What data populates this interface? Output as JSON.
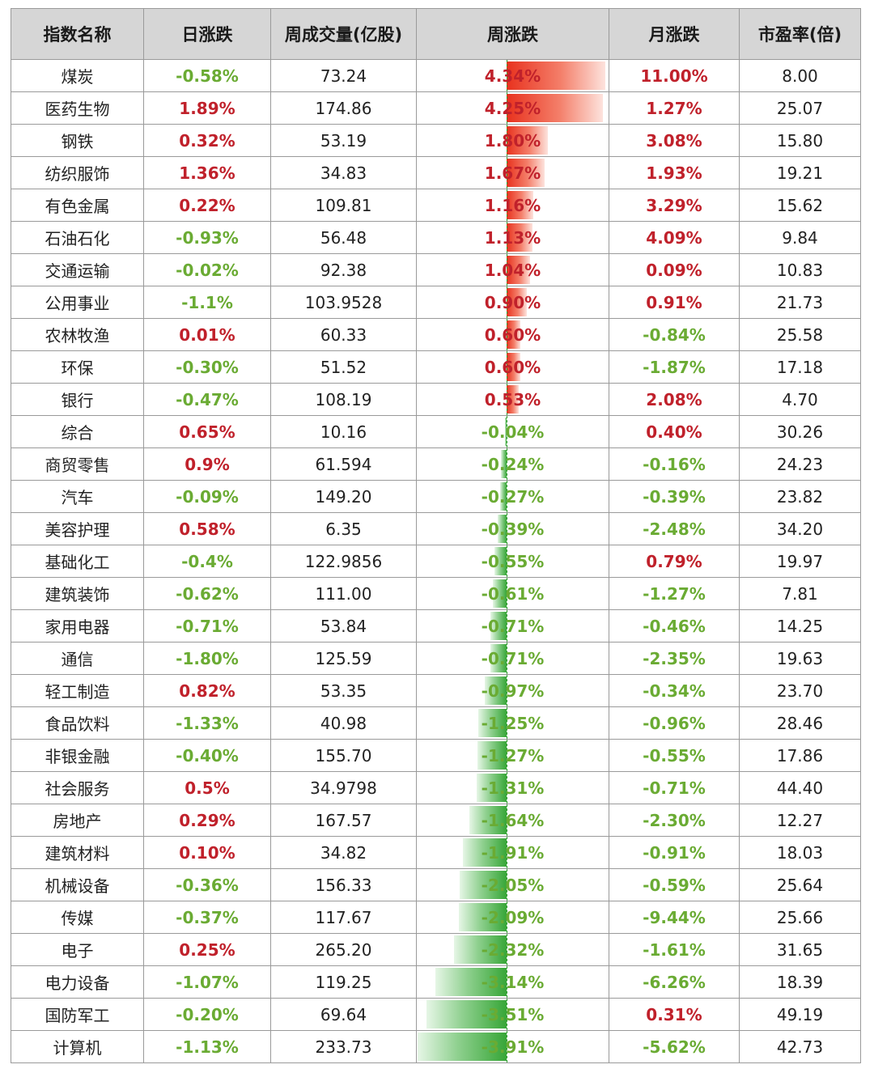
{
  "headers": {
    "name": "指数名称",
    "day": "日涨跌",
    "volume": "周成交量(亿股)",
    "week": "周涨跌",
    "month": "月涨跌",
    "pe": "市盈率(倍)"
  },
  "colors": {
    "up": "#c0212b",
    "down": "#6aab33",
    "bar_up": "#e8321e",
    "bar_down": "#37a637",
    "header_bg": "#d6d6d6"
  },
  "rows": [
    {
      "name": "煤炭",
      "day": "-0.58%",
      "volume": "73.24",
      "week": "4.34%",
      "week_value": 4.34,
      "month": "11.00%",
      "pe": "8.00"
    },
    {
      "name": "医药生物",
      "day": "1.89%",
      "volume": "174.86",
      "week": "4.25%",
      "week_value": 4.25,
      "month": "1.27%",
      "pe": "25.07"
    },
    {
      "name": "钢铁",
      "day": "0.32%",
      "volume": "53.19",
      "week": "1.80%",
      "week_value": 1.8,
      "month": "3.08%",
      "pe": "15.80"
    },
    {
      "name": "纺织服饰",
      "day": "1.36%",
      "volume": "34.83",
      "week": "1.67%",
      "week_value": 1.67,
      "month": "1.93%",
      "pe": "19.21"
    },
    {
      "name": "有色金属",
      "day": "0.22%",
      "volume": "109.81",
      "week": "1.16%",
      "week_value": 1.16,
      "month": "3.29%",
      "pe": "15.62"
    },
    {
      "name": "石油石化",
      "day": "-0.93%",
      "volume": "56.48",
      "week": "1.13%",
      "week_value": 1.13,
      "month": "4.09%",
      "pe": "9.84"
    },
    {
      "name": "交通运输",
      "day": "-0.02%",
      "volume": "92.38",
      "week": "1.04%",
      "week_value": 1.04,
      "month": "0.09%",
      "pe": "10.83"
    },
    {
      "name": "公用事业",
      "day": "-1.1%",
      "volume": "103.9528",
      "week": "0.90%",
      "week_value": 0.9,
      "month": "0.91%",
      "pe": "21.73"
    },
    {
      "name": "农林牧渔",
      "day": "0.01%",
      "volume": "60.33",
      "week": "0.60%",
      "week_value": 0.6,
      "month": "-0.84%",
      "pe": "25.58"
    },
    {
      "name": "环保",
      "day": "-0.30%",
      "volume": "51.52",
      "week": "0.60%",
      "week_value": 0.6,
      "month": "-1.87%",
      "pe": "17.18"
    },
    {
      "name": "银行",
      "day": "-0.47%",
      "volume": "108.19",
      "week": "0.53%",
      "week_value": 0.53,
      "month": "2.08%",
      "pe": "4.70"
    },
    {
      "name": "综合",
      "day": "0.65%",
      "volume": "10.16",
      "week": "-0.04%",
      "week_value": -0.04,
      "month": "0.40%",
      "pe": "30.26"
    },
    {
      "name": "商贸零售",
      "day": "0.9%",
      "volume": "61.594",
      "week": "-0.24%",
      "week_value": -0.24,
      "month": "-0.16%",
      "pe": "24.23"
    },
    {
      "name": "汽车",
      "day": "-0.09%",
      "volume": "149.20",
      "week": "-0.27%",
      "week_value": -0.27,
      "month": "-0.39%",
      "pe": "23.82"
    },
    {
      "name": "美容护理",
      "day": "0.58%",
      "volume": "6.35",
      "week": "-0.39%",
      "week_value": -0.39,
      "month": "-2.48%",
      "pe": "34.20"
    },
    {
      "name": "基础化工",
      "day": "-0.4%",
      "volume": "122.9856",
      "week": "-0.55%",
      "week_value": -0.55,
      "month": "0.79%",
      "pe": "19.97"
    },
    {
      "name": "建筑装饰",
      "day": "-0.62%",
      "volume": "111.00",
      "week": "-0.61%",
      "week_value": -0.61,
      "month": "-1.27%",
      "pe": "7.81"
    },
    {
      "name": "家用电器",
      "day": "-0.71%",
      "volume": "53.84",
      "week": "-0.71%",
      "week_value": -0.71,
      "month": "-0.46%",
      "pe": "14.25"
    },
    {
      "name": "通信",
      "day": "-1.80%",
      "volume": "125.59",
      "week": "-0.71%",
      "week_value": -0.71,
      "month": "-2.35%",
      "pe": "19.63"
    },
    {
      "name": "轻工制造",
      "day": "0.82%",
      "volume": "53.35",
      "week": "-0.97%",
      "week_value": -0.97,
      "month": "-0.34%",
      "pe": "23.70"
    },
    {
      "name": "食品饮料",
      "day": "-1.33%",
      "volume": "40.98",
      "week": "-1.25%",
      "week_value": -1.25,
      "month": "-0.96%",
      "pe": "28.46"
    },
    {
      "name": "非银金融",
      "day": "-0.40%",
      "volume": "155.70",
      "week": "-1.27%",
      "week_value": -1.27,
      "month": "-0.55%",
      "pe": "17.86"
    },
    {
      "name": "社会服务",
      "day": "0.5%",
      "volume": "34.9798",
      "week": "-1.31%",
      "week_value": -1.31,
      "month": "-0.71%",
      "pe": "44.40"
    },
    {
      "name": "房地产",
      "day": "0.29%",
      "volume": "167.57",
      "week": "-1.64%",
      "week_value": -1.64,
      "month": "-2.30%",
      "pe": "12.27"
    },
    {
      "name": "建筑材料",
      "day": "0.10%",
      "volume": "34.82",
      "week": "-1.91%",
      "week_value": -1.91,
      "month": "-0.91%",
      "pe": "18.03"
    },
    {
      "name": "机械设备",
      "day": "-0.36%",
      "volume": "156.33",
      "week": "-2.05%",
      "week_value": -2.05,
      "month": "-0.59%",
      "pe": "25.64"
    },
    {
      "name": "传媒",
      "day": "-0.37%",
      "volume": "117.67",
      "week": "-2.09%",
      "week_value": -2.09,
      "month": "-9.44%",
      "pe": "25.66"
    },
    {
      "name": "电子",
      "day": "0.25%",
      "volume": "265.20",
      "week": "-2.32%",
      "week_value": -2.32,
      "month": "-1.61%",
      "pe": "31.65"
    },
    {
      "name": "电力设备",
      "day": "-1.07%",
      "volume": "119.25",
      "week": "-3.14%",
      "week_value": -3.14,
      "month": "-6.26%",
      "pe": "18.39"
    },
    {
      "name": "国防军工",
      "day": "-0.20%",
      "volume": "69.64",
      "week": "-3.51%",
      "week_value": -3.51,
      "month": "0.31%",
      "pe": "49.19"
    },
    {
      "name": "计算机",
      "day": "-1.13%",
      "volume": "233.73",
      "week": "-3.91%",
      "week_value": -3.91,
      "month": "-5.62%",
      "pe": "42.73"
    }
  ]
}
